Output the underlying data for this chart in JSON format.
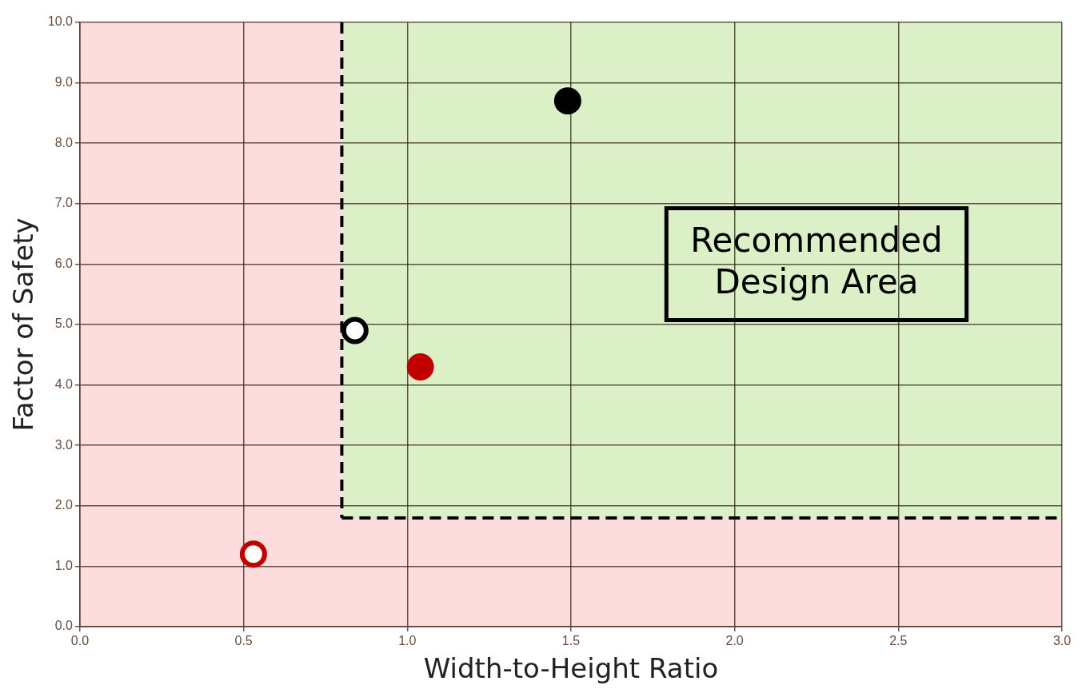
{
  "chart_data": {
    "type": "scatter",
    "xlabel": "Width-to-Height Ratio",
    "ylabel": "Factor of Safety",
    "xlim": [
      0,
      3
    ],
    "ylim": [
      0,
      10
    ],
    "xticks": [
      {
        "value": 0,
        "label": "0.0"
      },
      0.5,
      {
        "value": 1,
        "label": "1.0"
      },
      1.5,
      {
        "value": 2,
        "label": "2.0"
      },
      2.5,
      {
        "value": 3,
        "label": "3.0"
      }
    ],
    "yticks": [
      {
        "value": 0,
        "label": "0.0"
      },
      {
        "value": 1,
        "label": "1.0"
      },
      {
        "value": 2,
        "label": "2.0"
      },
      {
        "value": 3,
        "label": "3.0"
      },
      {
        "value": 4,
        "label": "4.0"
      },
      {
        "value": 5,
        "label": "5.0"
      },
      {
        "value": 6,
        "label": "6.0"
      },
      {
        "value": 7,
        "label": "7.0"
      },
      {
        "value": 8,
        "label": "8.0"
      },
      {
        "value": 9,
        "label": "9.0"
      },
      {
        "value": 10,
        "label": "10.0"
      }
    ],
    "grid": true,
    "legend": false,
    "marker": "circle",
    "series": [
      {
        "x": [
          1.49
        ],
        "values": [
          8.7
        ],
        "color": "#000000",
        "colors": [
          "#000000"
        ]
      },
      {
        "x": [
          0.84
        ],
        "values": [
          4.9
        ],
        "color": "#000000",
        "colors": [
          "#ffffff"
        ]
      },
      {
        "x": [
          1.04
        ],
        "values": [
          4.3
        ],
        "color": "#c00000",
        "colors": [
          "#c00000"
        ]
      },
      {
        "x": [
          0.53
        ],
        "values": [
          1.2
        ],
        "color": "#c00000",
        "colors": [
          "#ffffff"
        ]
      }
    ],
    "bands": [
      {
        "axis": "x",
        "from": 0,
        "to": 0.8,
        "color": "#fcdcdc"
      },
      {
        "axis": "x",
        "from": 0.8,
        "to": 3,
        "color": "#dcf0c8"
      },
      {
        "axis": "y",
        "from": 0,
        "to": 1.8,
        "color": "#fcdcdc"
      }
    ],
    "ref_lines": [
      {
        "axis": "x",
        "value": 0.8,
        "line_style": "dashed",
        "color": "#000000"
      },
      {
        "axis": "y",
        "value": 1.8,
        "line_style": "dashed",
        "color": "#000000"
      }
    ],
    "annotations": [
      "Recommended Design Area"
    ]
  }
}
